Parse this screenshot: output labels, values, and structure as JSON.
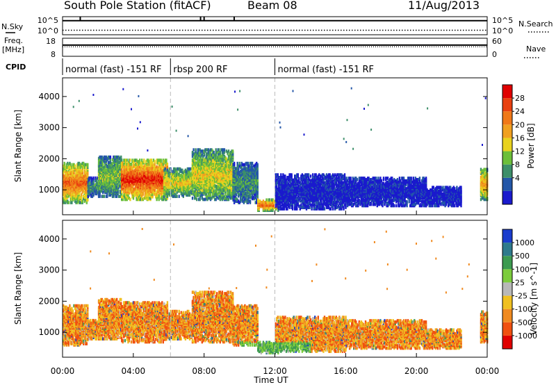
{
  "header": {
    "station": "South Pole Station (fitACF)",
    "beam": "Beam 08",
    "date": "11/Aug/2013"
  },
  "strip_labels": {
    "nsky": "N.Sky",
    "nsearch": "N.Search",
    "freq_line1": "Freq.",
    "freq_line2": "[MHz]",
    "nave": "Nave",
    "cpid": "CPID"
  },
  "chart_data": [
    {
      "type": "line",
      "name": "noise",
      "series": [
        {
          "name": "N.Sky",
          "style": "solid"
        },
        {
          "name": "N.Search",
          "style": "dotted"
        }
      ],
      "y_left_ticks": [
        "10^5",
        "10^0"
      ],
      "y_right_ticks": [
        "10^5",
        "10^0"
      ],
      "sky_level": 0.78,
      "search_level": 0.25,
      "spikes_hours": [
        1.0,
        7.8,
        8.0,
        9.7
      ],
      "xlim": [
        0,
        24
      ]
    },
    {
      "type": "line",
      "name": "frequency-nave",
      "series": [
        {
          "name": "Freq.",
          "style": "solid"
        },
        {
          "name": "Nave",
          "style": "dotted"
        }
      ],
      "y_left_ticks": [
        "18",
        "8"
      ],
      "y_right_ticks": [
        "60",
        "0"
      ],
      "freq_level": 0.62,
      "nave_level": 0.6,
      "xlim": [
        0,
        24
      ]
    },
    {
      "type": "table",
      "name": "cpid",
      "segments": [
        {
          "start": 0,
          "end": 6.1,
          "label": "normal (fast) -151 RF"
        },
        {
          "start": 6.1,
          "end": 12.0,
          "label": "rbsp 200 RF"
        },
        {
          "start": 12.0,
          "end": 24.0,
          "label": "normal (fast) -151 RF"
        }
      ]
    },
    {
      "type": "heatmap",
      "name": "power",
      "ylabel": "Slant Range [km]",
      "ylim": [
        200,
        4600
      ],
      "y_ticks": [
        1000,
        2000,
        3000,
        4000
      ],
      "xlim": [
        0,
        24
      ],
      "colorbar_label": "Power [dB]",
      "colorbar_ticks": [
        "28",
        "24",
        "20",
        "16",
        "12",
        "8",
        "4"
      ],
      "colors": [
        "#1a1acd",
        "#2457a8",
        "#3d8f6a",
        "#6cbf3a",
        "#e8d21e",
        "#f0a020",
        "#f07818",
        "#e84010",
        "#e00000"
      ],
      "echo_regions": [
        {
          "t0": 0.0,
          "t1": 1.4,
          "r0": 600,
          "r1": 1900,
          "core": 6
        },
        {
          "t0": 1.4,
          "t1": 2.1,
          "r0": 800,
          "r1": 1400,
          "core": 2
        },
        {
          "t0": 2.0,
          "t1": 3.3,
          "r0": 800,
          "r1": 2100,
          "core": 3
        },
        {
          "t0": 3.3,
          "t1": 5.9,
          "r0": 700,
          "r1": 2000,
          "core": 7
        },
        {
          "t0": 5.7,
          "t1": 7.3,
          "r0": 800,
          "r1": 1700,
          "core": 4
        },
        {
          "t0": 7.3,
          "t1": 9.6,
          "r0": 700,
          "r1": 2300,
          "core": 4
        },
        {
          "t0": 9.6,
          "t1": 11.0,
          "r0": 600,
          "r1": 1900,
          "core": 2
        },
        {
          "t0": 11.0,
          "t1": 12.2,
          "r0": 350,
          "r1": 700,
          "core": 6
        },
        {
          "t0": 12.0,
          "t1": 16.0,
          "r0": 400,
          "r1": 1500,
          "core": 0
        },
        {
          "t0": 16.0,
          "t1": 20.5,
          "r0": 500,
          "r1": 1400,
          "core": 0
        },
        {
          "t0": 20.5,
          "t1": 22.5,
          "r0": 500,
          "r1": 1100,
          "core": 0
        },
        {
          "t0": 23.6,
          "t1": 24.0,
          "r0": 700,
          "r1": 1700,
          "core": 5
        }
      ]
    },
    {
      "type": "heatmap",
      "name": "velocity",
      "xlabel": "Time UT",
      "ylabel": "Slant Range [km]",
      "ylim": [
        200,
        4600
      ],
      "y_ticks": [
        1000,
        2000,
        3000,
        4000
      ],
      "xlim": [
        0,
        24
      ],
      "x_ticks": [
        "00:00",
        "04:00",
        "08:00",
        "12:00",
        "16:00",
        "20:00",
        "00:00"
      ],
      "colorbar_label": "Velocity [m s^-1]",
      "colorbar_ticks": [
        "1000",
        "500",
        "100",
        "25",
        "-25",
        "-100",
        "-500",
        "-1000"
      ],
      "colors": [
        "#1a3ccd",
        "#2e7a8c",
        "#3c9a50",
        "#7ccc3c",
        "#b8b8b8",
        "#f0c020",
        "#f08a20",
        "#f05010",
        "#e00000"
      ]
    }
  ]
}
